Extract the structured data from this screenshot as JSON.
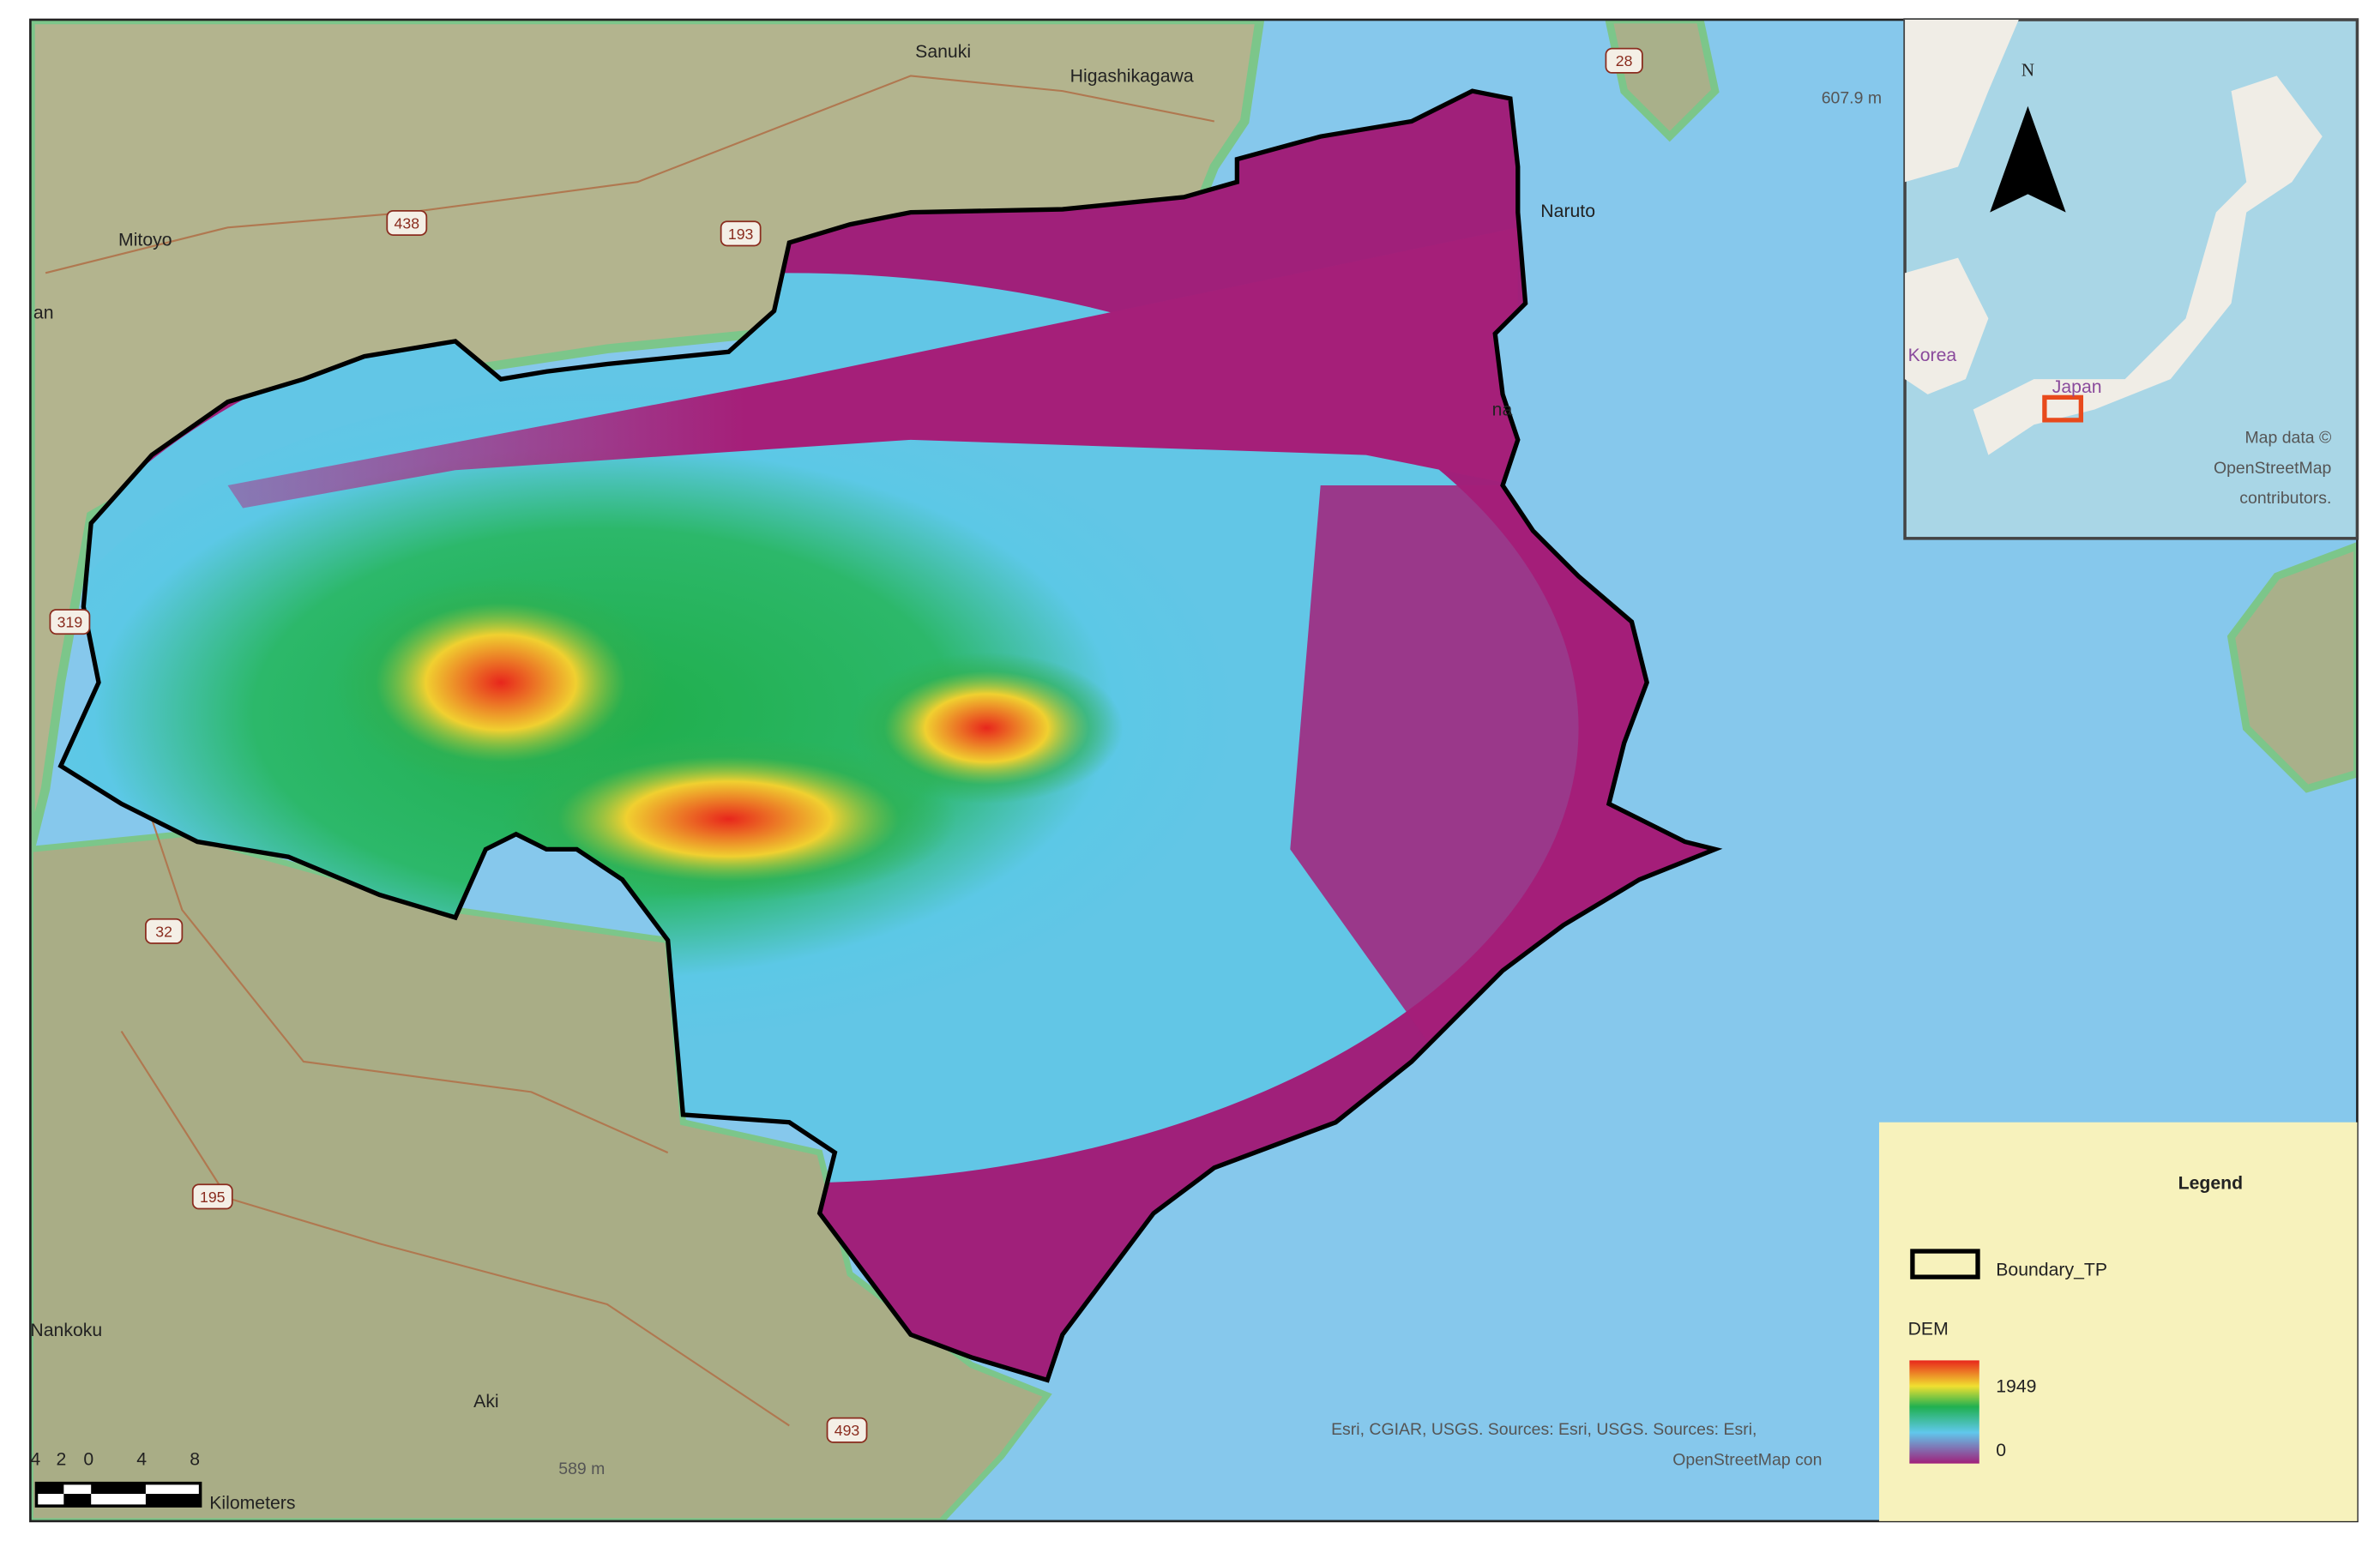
{
  "map": {
    "places": [
      "Sanuki",
      "Higashikagawa",
      "Mitoyo",
      "an",
      "Naruto",
      "na",
      "Nankoku",
      "Aki"
    ],
    "roads": [
      "28",
      "438",
      "193",
      "319",
      "32",
      "195",
      "493"
    ],
    "peaks": [
      "607.9 m",
      "589 m"
    ],
    "scale_bar": {
      "ticks": [
        "4",
        "2",
        "0",
        "4",
        "8"
      ],
      "unit": "Kilometers"
    },
    "attribution": [
      "Esri, CGIAR, USGS. Sources: Esri, USGS. Sources: Esri,",
      "OpenStreetMap con"
    ],
    "inset": {
      "north": "N",
      "labels": [
        "Korea",
        "Japan"
      ],
      "credit": [
        "Map data ©",
        "OpenStreetMap",
        "contributors."
      ]
    },
    "legend": {
      "title": "Legend",
      "boundary": "Boundary_TP",
      "dem": "DEM",
      "max": "1949",
      "min": "0"
    }
  }
}
